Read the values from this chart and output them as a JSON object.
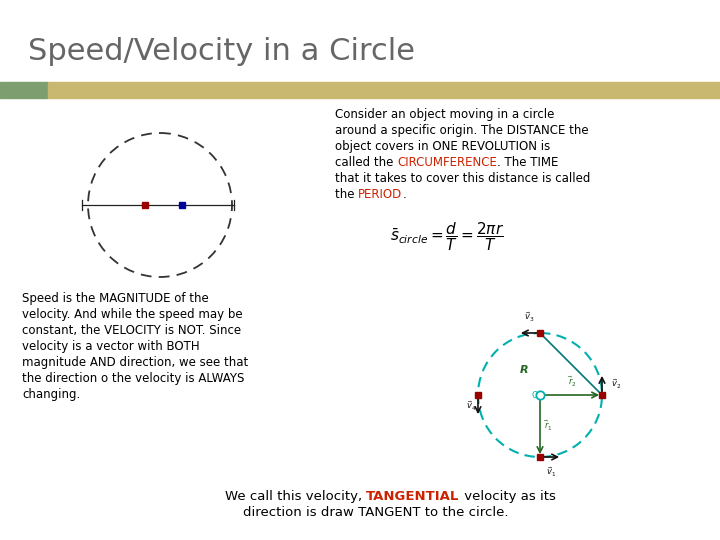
{
  "title": "Speed/Velocity in a Circle",
  "title_color": "#666666",
  "title_fontsize": 22,
  "bg_color": "#ffffff",
  "bar1_color": "#7d9e6e",
  "bar2_color": "#c8b870",
  "para1_lines": [
    [
      [
        "Consider an object moving in a circle",
        "#000000"
      ]
    ],
    [
      [
        "around a specific origin. The DISTANCE the",
        "#000000"
      ]
    ],
    [
      [
        "object covers in ONE REVOLUTION is",
        "#000000"
      ]
    ],
    [
      [
        "called the ",
        "#000000"
      ],
      [
        "CIRCUMFERENCE",
        "#cc2200"
      ],
      [
        ". The TIME",
        "#000000"
      ]
    ],
    [
      [
        "that it takes to cover this distance is called",
        "#000000"
      ]
    ],
    [
      [
        "the ",
        "#000000"
      ],
      [
        "PERIOD",
        "#cc2200"
      ],
      [
        ".",
        "#000000"
      ]
    ]
  ],
  "para2_lines": [
    "Speed is the MAGNITUDE of the",
    "velocity. And while the speed may be",
    "constant, the VELOCITY is NOT. Since",
    "velocity is a vector with BOTH",
    "magnitude AND direction, we see that",
    "the direction o the velocity is ALWAYS",
    "changing."
  ],
  "para3_pre": "We call this velocity, ",
  "para3_highlight": "TANGENTIAL",
  "para3_post": " velocity as its",
  "para3_line2": "direction is draw TANGENT to the circle.",
  "highlight_color": "#cc2200",
  "text_color": "#000000",
  "circle1_color": "#333333",
  "circle2_color": "#00b0b0",
  "dot_red": "#990000",
  "dot_blue": "#000099",
  "green_color": "#226622",
  "arrow_color": "#111111"
}
